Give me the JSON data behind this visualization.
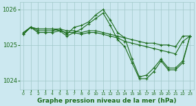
{
  "title": "Graphe pression niveau de la mer (hPa)",
  "background_color": "#cce8f0",
  "grid_color": "#a0c8c8",
  "line_color": "#1a6b1a",
  "series": [
    {
      "x": [
        0,
        1,
        2,
        3,
        4,
        5,
        6,
        7,
        8,
        9,
        10,
        11,
        12,
        13,
        14,
        15,
        16,
        17,
        18,
        19,
        20,
        21,
        22,
        23
      ],
      "y": [
        1025.35,
        1025.5,
        1025.45,
        1025.45,
        1025.45,
        1025.45,
        1025.4,
        1025.4,
        1025.35,
        1025.4,
        1025.4,
        1025.35,
        1025.3,
        1025.25,
        1025.2,
        1025.15,
        1025.1,
        1025.05,
        1025.05,
        1025.0,
        1025.0,
        1024.95,
        1025.25,
        1025.25
      ]
    },
    {
      "x": [
        0,
        1,
        2,
        3,
        4,
        5,
        6,
        7,
        8,
        9,
        10,
        11,
        12,
        13,
        14,
        15,
        16,
        17,
        18,
        19,
        20,
        21,
        22,
        23
      ],
      "y": [
        1025.35,
        1025.5,
        1025.45,
        1025.45,
        1025.45,
        1025.4,
        1025.35,
        1025.35,
        1025.3,
        1025.35,
        1025.35,
        1025.3,
        1025.25,
        1025.2,
        1025.1,
        1025.05,
        1025.0,
        1024.95,
        1024.9,
        1024.85,
        1024.8,
        1024.75,
        1025.1,
        1025.25
      ]
    },
    {
      "x": [
        0,
        1,
        2,
        3,
        4,
        5,
        6,
        7,
        8,
        9,
        10,
        11,
        12,
        13,
        14,
        15,
        16,
        17,
        18,
        19,
        20,
        21,
        22,
        23
      ],
      "y": [
        1025.3,
        1025.5,
        1025.4,
        1025.4,
        1025.4,
        1025.45,
        1025.3,
        1025.5,
        1025.55,
        1025.65,
        1025.85,
        1026.0,
        1025.7,
        1025.35,
        1025.2,
        1024.6,
        1024.1,
        1024.15,
        1024.35,
        1024.6,
        1024.35,
        1024.35,
        1024.55,
        1025.25
      ]
    },
    {
      "x": [
        0,
        1,
        2,
        3,
        4,
        5,
        6,
        7,
        8,
        9,
        10,
        11,
        12,
        13,
        14,
        15,
        16,
        17,
        18,
        19,
        20,
        21,
        22,
        23
      ],
      "y": [
        1025.3,
        1025.5,
        1025.35,
        1025.35,
        1025.35,
        1025.4,
        1025.25,
        1025.35,
        1025.45,
        1025.6,
        1025.75,
        1025.9,
        1025.55,
        1025.15,
        1024.95,
        1024.5,
        1024.05,
        1024.05,
        1024.25,
        1024.55,
        1024.3,
        1024.3,
        1024.5,
        1025.25
      ]
    }
  ],
  "xlim": [
    -0.5,
    23.5
  ],
  "ylim": [
    1023.75,
    1026.2
  ],
  "yticks": [
    1024,
    1025,
    1026
  ],
  "xticks": [
    0,
    1,
    2,
    3,
    4,
    5,
    6,
    7,
    8,
    9,
    10,
    11,
    12,
    13,
    14,
    15,
    16,
    17,
    18,
    19,
    20,
    21,
    22,
    23
  ],
  "marker": "+",
  "marker_size": 3,
  "linewidth": 0.8,
  "xlabel_fontsize": 6.5,
  "ytick_fontsize": 6,
  "xtick_fontsize": 4.5
}
